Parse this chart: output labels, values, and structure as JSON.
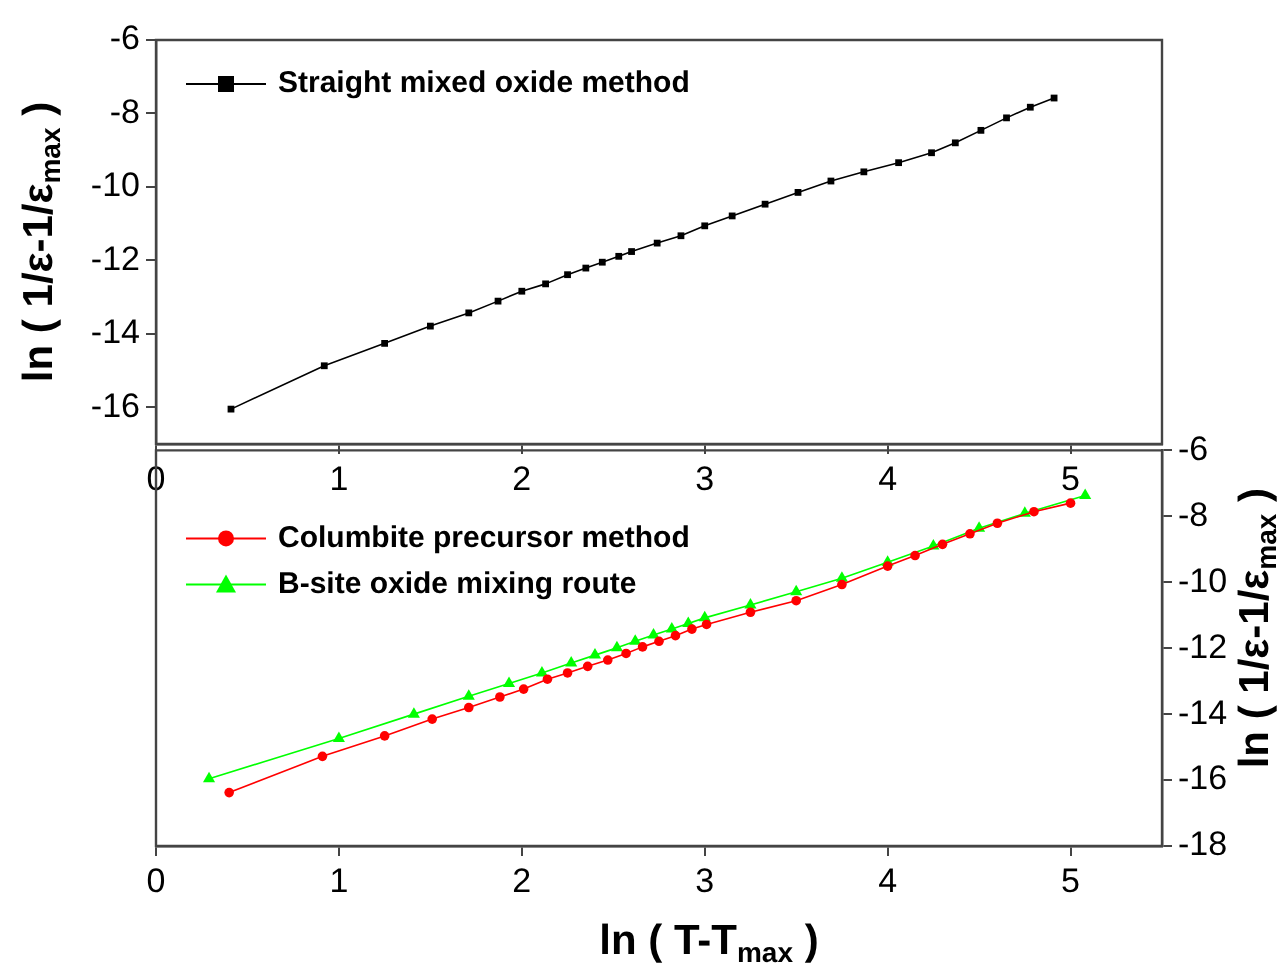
{
  "chart_data": [
    {
      "type": "line",
      "ylabel": "ln ( 1/ε-1/ε$_{max}$ )",
      "xlim": [
        0,
        5.5
      ],
      "xticks": [
        0,
        1,
        2,
        3,
        4,
        5
      ],
      "ylim": [
        -17,
        -6
      ],
      "yticks": [
        -16,
        -14,
        -12,
        -10,
        -8,
        -6
      ],
      "legend": "top left",
      "grid": false,
      "series": [
        {
          "name": "Straight mixed oxide method",
          "color": "#000000",
          "marker": "square",
          "x": [
            0.41,
            0.92,
            1.25,
            1.5,
            1.71,
            1.87,
            2.0,
            2.13,
            2.25,
            2.35,
            2.44,
            2.53,
            2.6,
            2.74,
            2.87,
            3.0,
            3.15,
            3.33,
            3.51,
            3.69,
            3.87,
            4.06,
            4.24,
            4.37,
            4.51,
            4.65,
            4.78,
            4.91
          ],
          "values": [
            -16.05,
            -14.87,
            -14.26,
            -13.79,
            -13.43,
            -13.11,
            -12.84,
            -12.64,
            -12.39,
            -12.21,
            -12.05,
            -11.89,
            -11.76,
            -11.53,
            -11.33,
            -11.06,
            -10.79,
            -10.47,
            -10.15,
            -9.84,
            -9.59,
            -9.34,
            -9.07,
            -8.8,
            -8.46,
            -8.12,
            -7.83,
            -7.58
          ]
        }
      ]
    },
    {
      "type": "line",
      "xlabel": "ln ( T-T$_{max}$ )",
      "y2label": "ln ( 1/ε-1/ε$_{max}$ )",
      "xlim": [
        0,
        5.5
      ],
      "xticks": [
        0,
        1,
        2,
        3,
        4,
        5
      ],
      "y2lim": [
        -18,
        -6
      ],
      "y2ticks": [
        -18,
        -16,
        -14,
        -12,
        -10,
        -8,
        -6
      ],
      "legend": "top left",
      "grid": false,
      "series": [
        {
          "name": "Columbite precursor method",
          "color": "#ff0000",
          "marker": "circle",
          "axis": "y2",
          "x": [
            0.4,
            0.91,
            1.25,
            1.51,
            1.71,
            1.88,
            2.01,
            2.14,
            2.25,
            2.36,
            2.47,
            2.57,
            2.66,
            2.75,
            2.84,
            2.93,
            3.01,
            3.25,
            3.5,
            3.75,
            4.0,
            4.15,
            4.3,
            4.45,
            4.6,
            4.8,
            5.0
          ],
          "values": [
            -16.38,
            -15.28,
            -14.66,
            -14.15,
            -13.8,
            -13.48,
            -13.24,
            -12.94,
            -12.75,
            -12.55,
            -12.36,
            -12.16,
            -11.96,
            -11.79,
            -11.62,
            -11.42,
            -11.28,
            -10.91,
            -10.56,
            -10.07,
            -9.51,
            -9.19,
            -8.85,
            -8.53,
            -8.21,
            -7.86,
            -7.6
          ]
        },
        {
          "name": "B-site oxide mixing route",
          "color": "#00ff00",
          "marker": "triangle",
          "axis": "y2",
          "x": [
            0.29,
            1.0,
            1.41,
            1.71,
            1.93,
            2.11,
            2.27,
            2.4,
            2.52,
            2.62,
            2.72,
            2.82,
            2.91,
            3.0,
            3.25,
            3.5,
            3.75,
            4.0,
            4.25,
            4.5,
            4.75,
            5.08
          ],
          "values": [
            -15.96,
            -14.74,
            -14.0,
            -13.46,
            -13.07,
            -12.75,
            -12.45,
            -12.21,
            -11.99,
            -11.79,
            -11.6,
            -11.42,
            -11.25,
            -11.08,
            -10.69,
            -10.29,
            -9.88,
            -9.39,
            -8.9,
            -8.36,
            -7.91,
            -7.37
          ]
        }
      ]
    }
  ]
}
